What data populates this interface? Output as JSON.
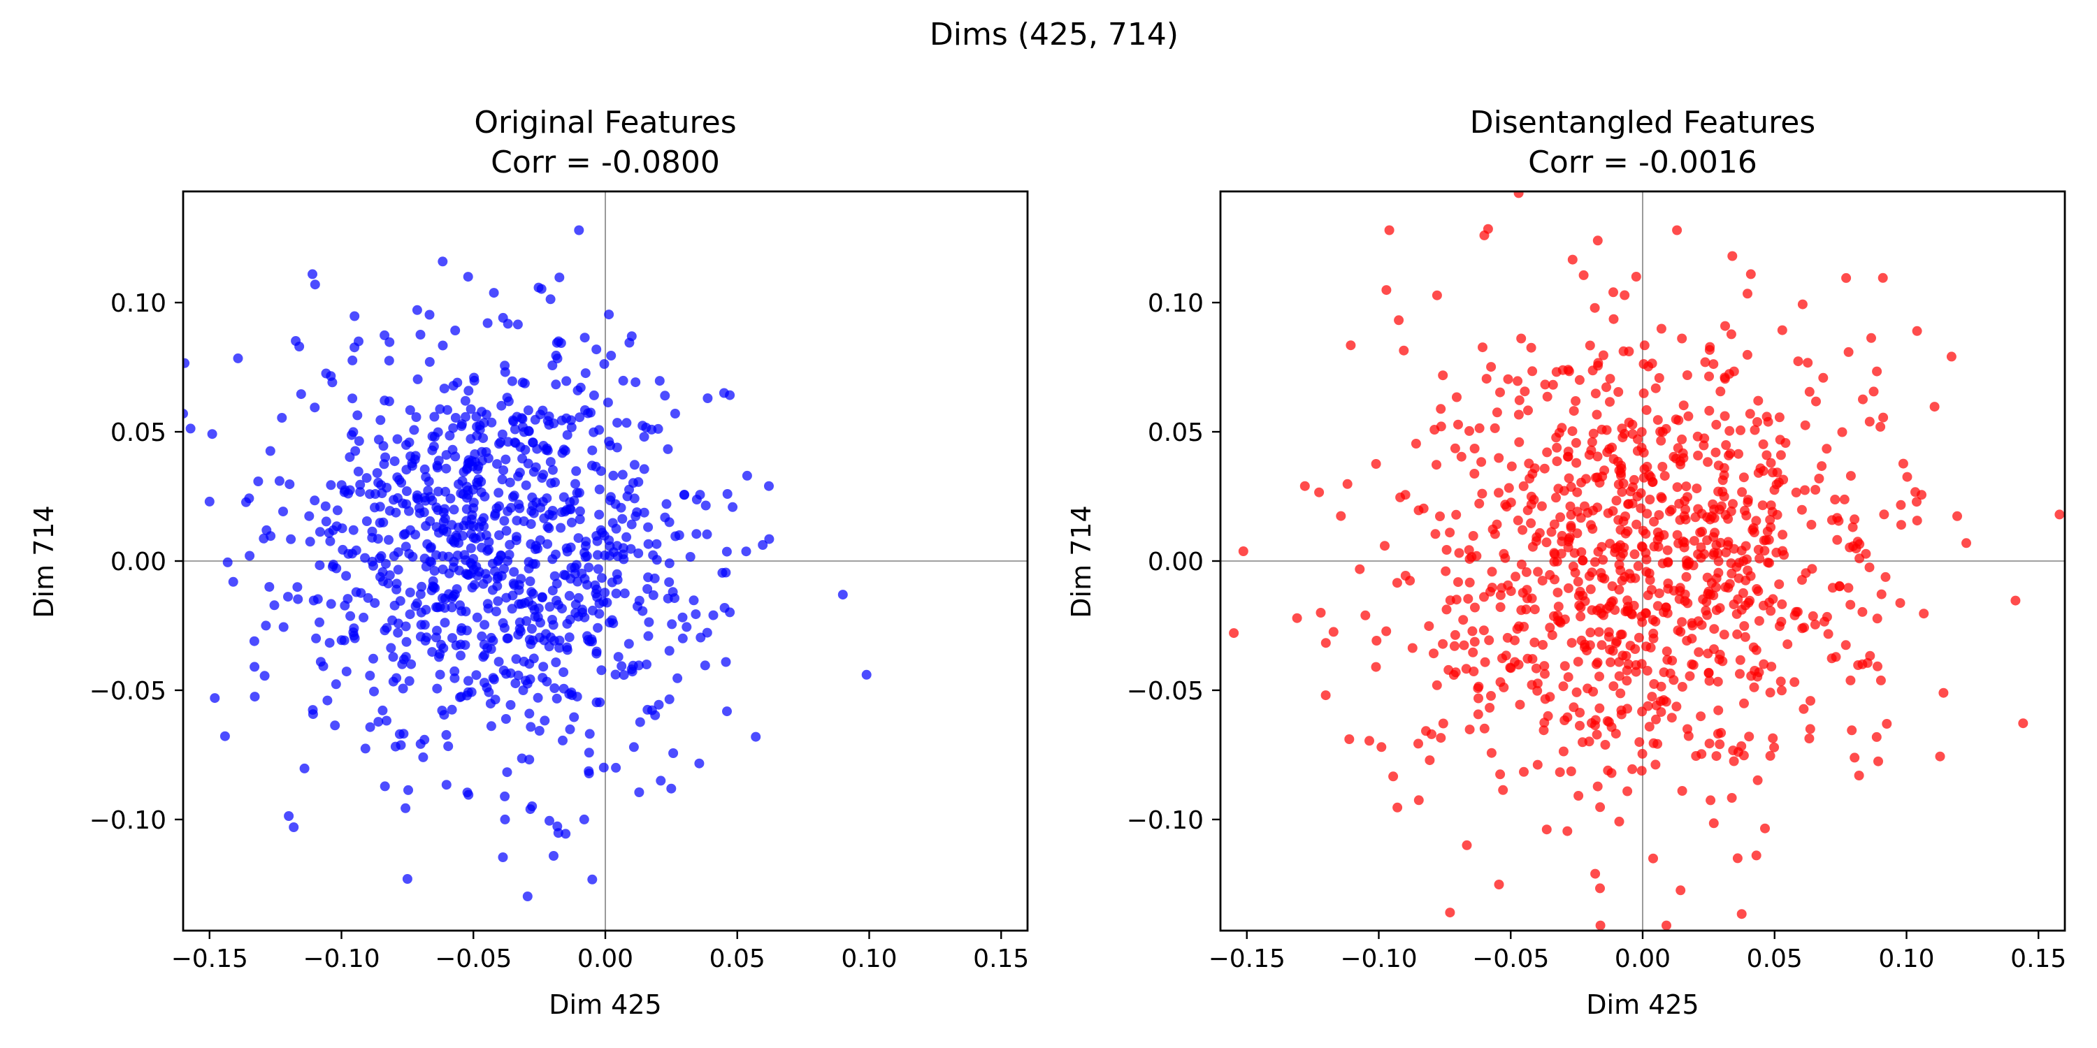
{
  "figure": {
    "suptitle": "Dims (425, 714)"
  },
  "chart_data": [
    {
      "type": "scatter",
      "title": "Original Features",
      "subtitle": "Corr = -0.0800",
      "xlabel": "Dim 425",
      "ylabel": "Dim 714",
      "xlim": [
        -0.16,
        0.16
      ],
      "ylim": [
        -0.143,
        0.143
      ],
      "xticks": [
        -0.15,
        -0.1,
        -0.05,
        0.0,
        0.05,
        0.1,
        0.15
      ],
      "xtick_labels": [
        "−0.15",
        "−0.10",
        "−0.05",
        "0.00",
        "0.05",
        "0.10",
        "0.15"
      ],
      "yticks": [
        -0.1,
        -0.05,
        0.0,
        0.05,
        0.1
      ],
      "ytick_labels": [
        "−0.10",
        "−0.05",
        "0.00",
        "0.05",
        "0.10"
      ],
      "reference_lines": {
        "x": 0,
        "y": 0
      },
      "color": "#0000ff",
      "alpha": 0.7,
      "n_points": 1000,
      "distribution": {
        "mean_x": -0.04,
        "mean_y": 0.005,
        "std_x": 0.04,
        "std_y": 0.04,
        "corr": -0.08
      },
      "points": [
        {
          "x": -0.16,
          "y": 0.057
        },
        {
          "x": -0.15,
          "y": 0.023
        },
        {
          "x": -0.148,
          "y": -0.053
        },
        {
          "x": -0.133,
          "y": -0.031
        },
        {
          "x": -0.111,
          "y": 0.111
        },
        {
          "x": -0.11,
          "y": 0.107
        },
        {
          "x": -0.116,
          "y": 0.083
        },
        {
          "x": -0.01,
          "y": 0.128
        },
        {
          "x": 0.09,
          "y": -0.013
        },
        {
          "x": 0.099,
          "y": -0.044
        },
        {
          "x": -0.075,
          "y": -0.123
        },
        {
          "x": -0.038,
          "y": -0.1
        },
        {
          "x": -0.008,
          "y": -0.1
        },
        {
          "x": 0.062,
          "y": 0.029
        },
        {
          "x": 0.057,
          "y": -0.068
        },
        {
          "x": 0.021,
          "y": -0.085
        },
        {
          "x": 0.004,
          "y": -0.08
        },
        {
          "x": -0.052,
          "y": 0.11
        },
        {
          "x": 0.01,
          "y": 0.087
        },
        {
          "x": 0.045,
          "y": 0.065
        }
      ]
    },
    {
      "type": "scatter",
      "title": "Disentangled Features",
      "subtitle": "Corr = -0.0016",
      "xlabel": "Dim 425",
      "ylabel": "Dim 714",
      "xlim": [
        -0.16,
        0.16
      ],
      "ylim": [
        -0.143,
        0.143
      ],
      "xticks": [
        -0.15,
        -0.1,
        -0.05,
        0.0,
        0.05,
        0.1,
        0.15
      ],
      "xtick_labels": [
        "−0.15",
        "−0.10",
        "−0.05",
        "0.00",
        "0.05",
        "0.10",
        "0.15"
      ],
      "yticks": [
        -0.1,
        -0.05,
        0.0,
        0.05,
        0.1
      ],
      "ytick_labels": [
        "−0.10",
        "−0.05",
        "0.00",
        "0.05",
        "0.10"
      ],
      "reference_lines": {
        "x": 0,
        "y": 0
      },
      "color": "#ff0000",
      "alpha": 0.7,
      "n_points": 1000,
      "distribution": {
        "mean_x": 0.0,
        "mean_y": 0.0,
        "std_x": 0.045,
        "std_y": 0.045,
        "corr": -0.0016
      },
      "points": [
        {
          "x": 0.158,
          "y": 0.018
        },
        {
          "x": 0.114,
          "y": -0.051
        },
        {
          "x": 0.104,
          "y": 0.089
        },
        {
          "x": -0.128,
          "y": 0.029
        },
        {
          "x": -0.122,
          "y": -0.02
        },
        {
          "x": -0.099,
          "y": -0.072
        },
        {
          "x": -0.096,
          "y": 0.128
        },
        {
          "x": -0.06,
          "y": 0.126
        },
        {
          "x": -0.017,
          "y": 0.124
        },
        {
          "x": 0.013,
          "y": 0.128
        },
        {
          "x": 0.034,
          "y": 0.118
        },
        {
          "x": 0.041,
          "y": 0.111
        },
        {
          "x": -0.073,
          "y": -0.136
        },
        {
          "x": -0.016,
          "y": -0.141
        },
        {
          "x": 0.009,
          "y": -0.141
        },
        {
          "x": -0.018,
          "y": -0.121
        },
        {
          "x": 0.036,
          "y": -0.115
        },
        {
          "x": -0.08,
          "y": -0.067
        },
        {
          "x": 0.082,
          "y": -0.083
        },
        {
          "x": 0.098,
          "y": 0.014
        }
      ]
    }
  ]
}
